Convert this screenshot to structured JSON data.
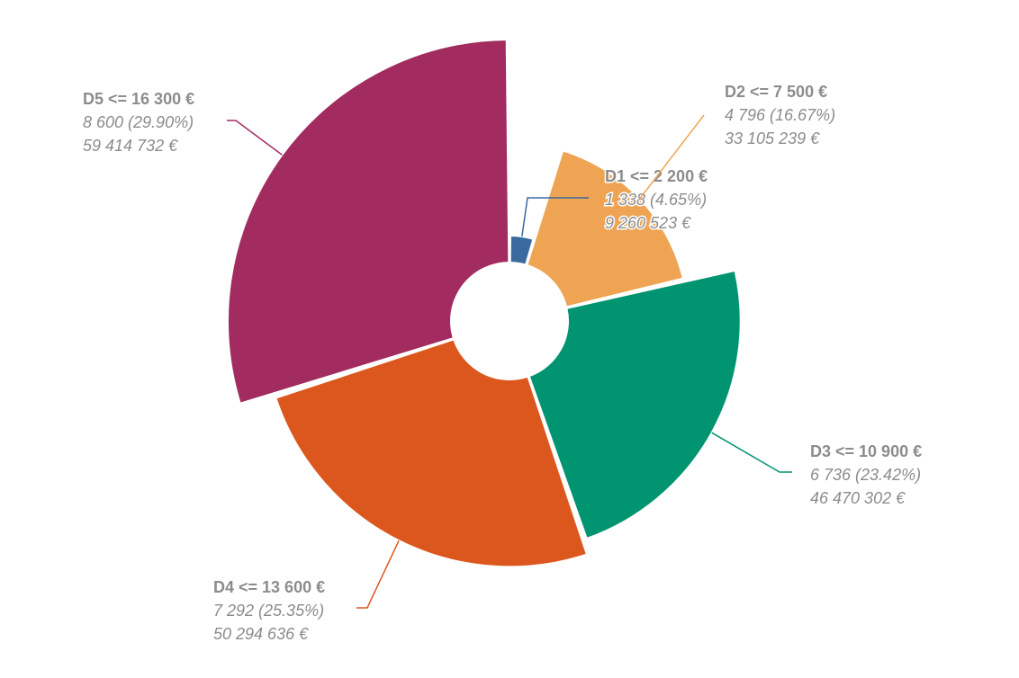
{
  "chart_data": {
    "type": "pie",
    "variant": "variable-radius-donut",
    "categories": [
      "D1 <= 2 200 €",
      "D2 <= 7 500 €",
      "D3 <= 10 900 €",
      "D4 <= 13 600 €",
      "D5 <= 16 300 €"
    ],
    "series": [
      {
        "values": [
          1338,
          4796,
          6736,
          7292,
          8600
        ],
        "percent_labels": [
          "1 338 (4.65%)",
          "4 796 (16.67%)",
          "6 736 (23.42%)",
          "7 292 (25.35%)",
          "8 600 (29.90%)"
        ],
        "amount_labels": [
          "9 260 523 €",
          "33 105 239 €",
          "46 470 302 €",
          "50 294 636 €",
          "59 414 732 €"
        ],
        "radius_values": [
          9260523,
          33105239,
          46470302,
          50294636,
          59414732
        ],
        "colors": [
          "#3a6a9e",
          "#eea453",
          "#009471",
          "#dc571e",
          "#a22c60"
        ]
      }
    ],
    "label_color": "#8c8c8c",
    "legend": "none"
  }
}
